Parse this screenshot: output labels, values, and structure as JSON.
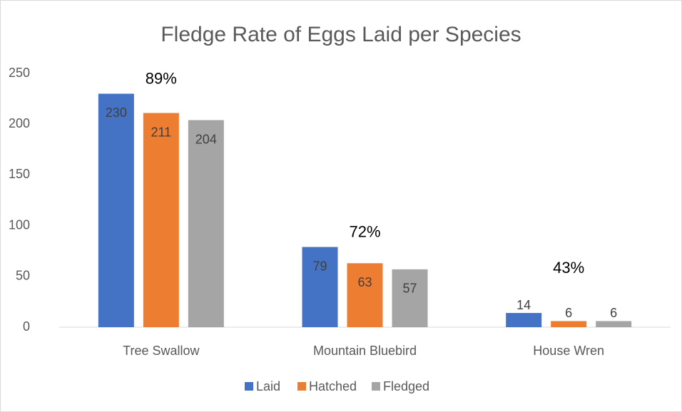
{
  "chart_data": {
    "type": "bar",
    "title": "Fledge Rate of Eggs Laid per Species",
    "categories": [
      "Tree Swallow",
      "Mountain Bluebird",
      "House Wren"
    ],
    "series": [
      {
        "name": "Laid",
        "color": "#4472c4",
        "values": [
          230,
          79,
          14
        ]
      },
      {
        "name": "Hatched",
        "color": "#ed7d31",
        "values": [
          211,
          63,
          6
        ]
      },
      {
        "name": "Fledged",
        "color": "#a5a5a5",
        "values": [
          204,
          57,
          6
        ]
      }
    ],
    "annotations": [
      "89%",
      "72%",
      "43%"
    ],
    "ylim": [
      0,
      250
    ],
    "yticks": [
      0,
      50,
      100,
      150,
      200,
      250
    ],
    "grid": false,
    "legend": "bottom"
  }
}
